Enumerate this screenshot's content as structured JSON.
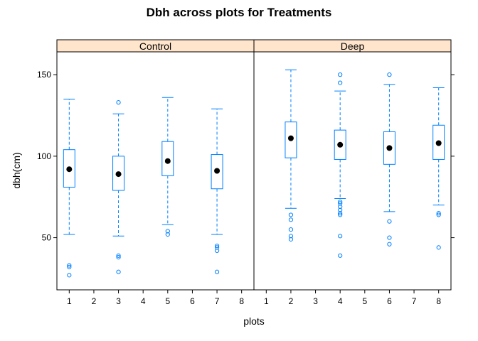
{
  "chart_data": {
    "type": "boxplot",
    "title": "Dbh across plots for Treatments",
    "xlabel": "plots",
    "ylabel": "dbh(cm)",
    "xlim": [
      0.5,
      8.5
    ],
    "ylim": [
      18,
      164
    ],
    "x_ticks": [
      1,
      2,
      3,
      4,
      5,
      6,
      7,
      8
    ],
    "y_ticks": [
      50,
      100,
      150
    ],
    "colors": {
      "box": "#0080ff",
      "median_dot": "#000000",
      "strip_bg": "#ffe5cc",
      "frame": "#000000"
    },
    "panels": [
      {
        "name": "Control",
        "boxes": [
          {
            "x": 1,
            "whisker_low": 52,
            "q1": 81,
            "median": 92,
            "q3": 104,
            "whisker_high": 135,
            "outliers": [
              27,
              32,
              33
            ]
          },
          {
            "x": 3,
            "whisker_low": 51,
            "q1": 79,
            "median": 89,
            "q3": 100,
            "whisker_high": 126,
            "outliers": [
              29,
              38,
              39,
              133
            ]
          },
          {
            "x": 5,
            "whisker_low": 58,
            "q1": 88,
            "median": 97,
            "q3": 109,
            "whisker_high": 136,
            "outliers": [
              52,
              54
            ]
          },
          {
            "x": 7,
            "whisker_low": 52,
            "q1": 80,
            "median": 91,
            "q3": 101,
            "whisker_high": 129,
            "outliers": [
              29,
              42,
              44,
              45
            ]
          }
        ]
      },
      {
        "name": "Deep",
        "boxes": [
          {
            "x": 2,
            "whisker_low": 68,
            "q1": 99,
            "median": 111,
            "q3": 121,
            "whisker_high": 153,
            "outliers": [
              49,
              51,
              55,
              61,
              64
            ]
          },
          {
            "x": 4,
            "whisker_low": 74,
            "q1": 98,
            "median": 107,
            "q3": 116,
            "whisker_high": 140,
            "outliers": [
              39,
              51,
              64,
              65,
              67,
              69,
              71,
              72,
              145,
              150
            ]
          },
          {
            "x": 6,
            "whisker_low": 66,
            "q1": 95,
            "median": 105,
            "q3": 115,
            "whisker_high": 144,
            "outliers": [
              46,
              50,
              60,
              150
            ]
          },
          {
            "x": 8,
            "whisker_low": 70,
            "q1": 98,
            "median": 108,
            "q3": 119,
            "whisker_high": 142,
            "outliers": [
              44,
              64,
              65
            ]
          }
        ]
      }
    ]
  }
}
